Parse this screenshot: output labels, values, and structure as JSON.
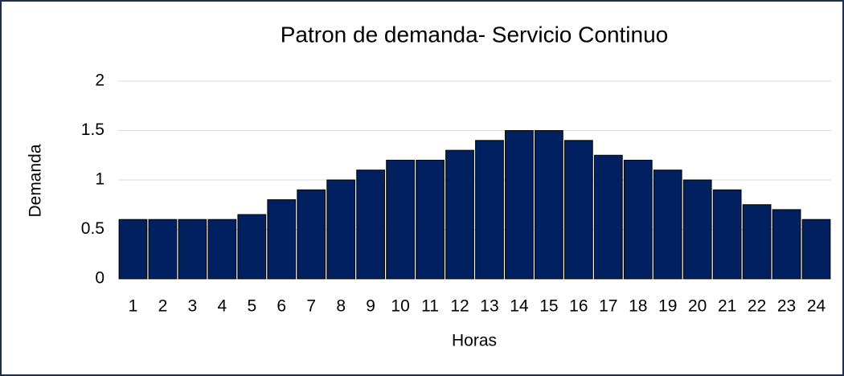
{
  "chart_data": {
    "type": "bar",
    "title": "Patron de demanda- Servicio Continuo",
    "x_label": "Horas",
    "y_label": "Demanda",
    "categories": [
      "1",
      "2",
      "3",
      "4",
      "5",
      "6",
      "7",
      "8",
      "9",
      "10",
      "11",
      "12",
      "13",
      "14",
      "15",
      "16",
      "17",
      "18",
      "19",
      "20",
      "21",
      "22",
      "23",
      "24"
    ],
    "values": [
      0.6,
      0.6,
      0.6,
      0.6,
      0.65,
      0.8,
      0.9,
      1.0,
      1.1,
      1.2,
      1.2,
      1.3,
      1.4,
      1.5,
      1.5,
      1.4,
      1.25,
      1.2,
      1.1,
      1.0,
      0.9,
      0.75,
      0.7,
      0.6
    ],
    "color": "#002060",
    "ylim": [
      0,
      2
    ],
    "yticks": [
      0,
      0.5,
      1,
      1.5,
      2
    ],
    "grid": true
  }
}
